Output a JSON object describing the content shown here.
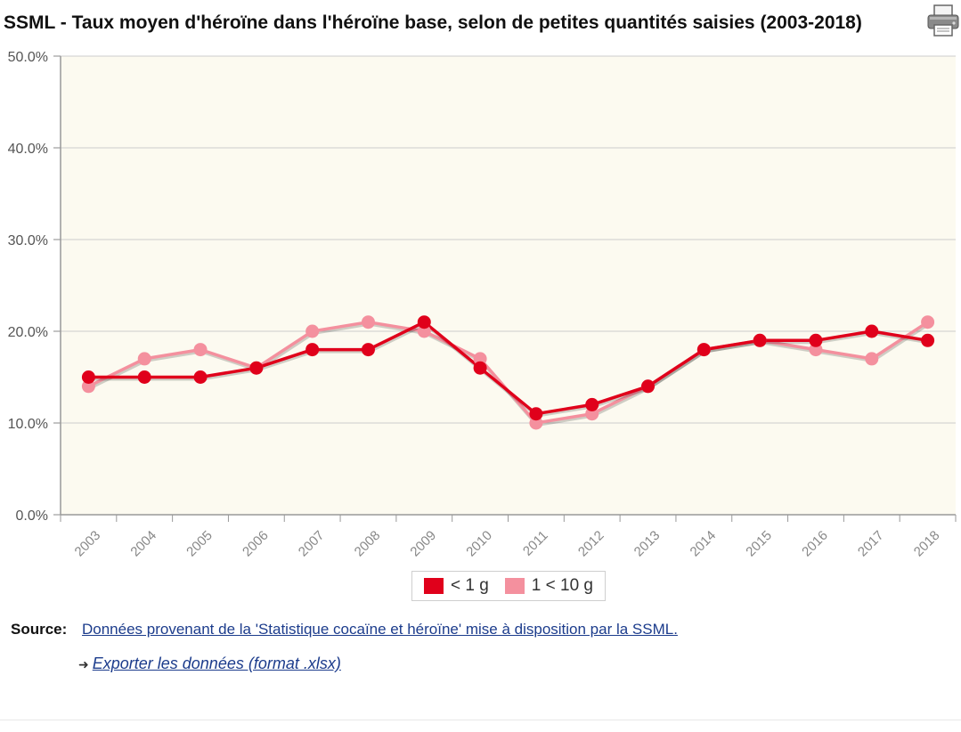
{
  "header": {
    "title": "SSML - Taux moyen d'héroïne dans l'héroïne base, selon de petites quantités saisies (2003-2018)",
    "print_icon": "printer-icon"
  },
  "chart_data": {
    "type": "line",
    "title": "SSML - Taux moyen d'héroïne dans l'héroïne base, selon de petites quantités saisies (2003-2018)",
    "categories": [
      "2003",
      "2004",
      "2005",
      "2006",
      "2007",
      "2008",
      "2009",
      "2010",
      "2011",
      "2012",
      "2013",
      "2014",
      "2015",
      "2016",
      "2017",
      "2018"
    ],
    "series": [
      {
        "name": "< 1 g",
        "color": "#e0001b",
        "values": [
          15,
          15,
          15,
          16,
          18,
          18,
          21,
          16,
          11,
          12,
          14,
          18,
          19,
          19,
          20,
          19
        ]
      },
      {
        "name": "1 < 10 g",
        "color": "#f4909e",
        "values": [
          14,
          17,
          18,
          16,
          20,
          21,
          20,
          17,
          10,
          11,
          14,
          18,
          19,
          18,
          17,
          21
        ]
      }
    ],
    "y_ticks": [
      "0.0%",
      "10.0%",
      "20.0%",
      "30.0%",
      "40.0%",
      "50.0%"
    ],
    "ylim": [
      0,
      50
    ],
    "grid": true,
    "legend_position": "bottom-center",
    "plot_background": "#fcfaf0"
  },
  "source": {
    "label": "Source:",
    "text": "Données provenant de la 'Statistique cocaïne et héroïne' mise à disposition par la SSML."
  },
  "export": {
    "arrow_icon": "arrow-right-icon",
    "text": "Exporter les données (format .xlsx)"
  }
}
